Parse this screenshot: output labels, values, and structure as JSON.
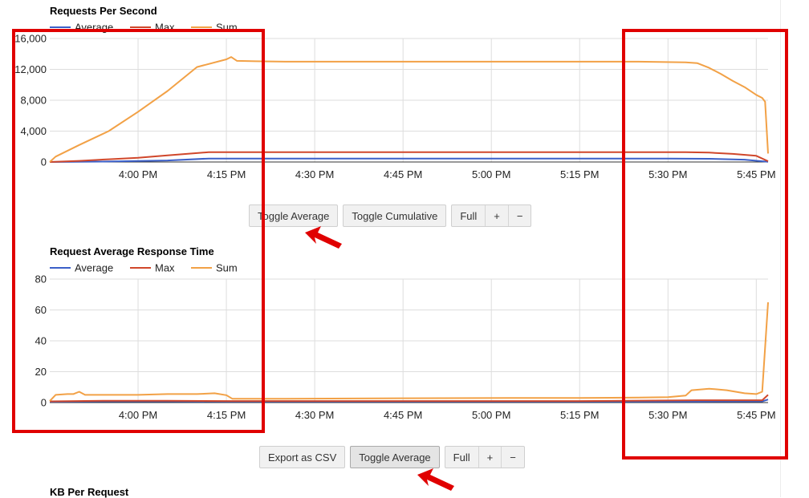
{
  "colors": {
    "average": "#3b5fc8",
    "max": "#d0472b",
    "sum": "#f2a146",
    "annotation": "#e00000",
    "grid": "#dddddd"
  },
  "legend": [
    "Average",
    "Max",
    "Sum"
  ],
  "chart_data": [
    {
      "type": "line",
      "title": "Requests Per Second",
      "x_ticks": [
        "4:00 PM",
        "4:15 PM",
        "4:30 PM",
        "4:45 PM",
        "5:00 PM",
        "5:15 PM",
        "5:30 PM",
        "5:45 PM"
      ],
      "x_tick_minutes": [
        15,
        30,
        45,
        60,
        75,
        90,
        105,
        120
      ],
      "xlim_minutes": [
        0,
        122
      ],
      "y_ticks": [
        "0",
        "4,000",
        "8,000",
        "12,000",
        "16,000"
      ],
      "ylim": [
        0,
        16000
      ],
      "legend_position": "top-left",
      "grid": true,
      "series": [
        {
          "name": "Average",
          "points": [
            [
              0,
              0
            ],
            [
              10,
              60
            ],
            [
              20,
              200
            ],
            [
              27,
              450
            ],
            [
              35,
              450
            ],
            [
              60,
              450
            ],
            [
              90,
              450
            ],
            [
              105,
              450
            ],
            [
              112,
              420
            ],
            [
              118,
              300
            ],
            [
              122,
              20
            ]
          ]
        },
        {
          "name": "Max",
          "points": [
            [
              0,
              0
            ],
            [
              5,
              150
            ],
            [
              10,
              350
            ],
            [
              15,
              550
            ],
            [
              20,
              850
            ],
            [
              25,
              1150
            ],
            [
              27,
              1280
            ],
            [
              40,
              1280
            ],
            [
              60,
              1270
            ],
            [
              90,
              1270
            ],
            [
              108,
              1270
            ],
            [
              112,
              1220
            ],
            [
              116,
              1050
            ],
            [
              120,
              800
            ],
            [
              122,
              100
            ]
          ]
        },
        {
          "name": "Sum",
          "points": [
            [
              0,
              0
            ],
            [
              1,
              700
            ],
            [
              5,
              2200
            ],
            [
              10,
              4000
            ],
            [
              15,
              6500
            ],
            [
              20,
              9200
            ],
            [
              25,
              12300
            ],
            [
              30,
              13300
            ],
            [
              30.8,
              13600
            ],
            [
              31.8,
              13100
            ],
            [
              35,
              13050
            ],
            [
              40,
              13000
            ],
            [
              45,
              13000
            ],
            [
              50,
              13000
            ],
            [
              60,
              13000
            ],
            [
              70,
              13000
            ],
            [
              80,
              13000
            ],
            [
              90,
              13000
            ],
            [
              100,
              13000
            ],
            [
              108,
              12900
            ],
            [
              110,
              12800
            ],
            [
              112,
              12200
            ],
            [
              114,
              11400
            ],
            [
              116,
              10500
            ],
            [
              118,
              9700
            ],
            [
              120,
              8700
            ],
            [
              121,
              8300
            ],
            [
              121.5,
              7800
            ],
            [
              122,
              1100
            ]
          ]
        }
      ]
    },
    {
      "type": "line",
      "title": "Request Average Response Time",
      "x_ticks": [
        "4:00 PM",
        "4:15 PM",
        "4:30 PM",
        "4:45 PM",
        "5:00 PM",
        "5:15 PM",
        "5:30 PM",
        "5:45 PM"
      ],
      "x_tick_minutes": [
        15,
        30,
        45,
        60,
        75,
        90,
        105,
        120
      ],
      "xlim_minutes": [
        0,
        122
      ],
      "y_ticks": [
        "0",
        "20",
        "40",
        "60",
        "80"
      ],
      "ylim": [
        0,
        80
      ],
      "legend_position": "top-left",
      "grid": true,
      "series": [
        {
          "name": "Average",
          "points": [
            [
              0,
              0.5
            ],
            [
              10,
              0.8
            ],
            [
              20,
              0.8
            ],
            [
              30,
              0.6
            ],
            [
              60,
              0.6
            ],
            [
              90,
              0.6
            ],
            [
              110,
              0.7
            ],
            [
              121,
              0.8
            ],
            [
              122,
              2
            ]
          ]
        },
        {
          "name": "Max",
          "points": [
            [
              0,
              0.8
            ],
            [
              10,
              1.2
            ],
            [
              20,
              1.2
            ],
            [
              30,
              1
            ],
            [
              60,
              1
            ],
            [
              90,
              1
            ],
            [
              110,
              1.5
            ],
            [
              121,
              1.5
            ],
            [
              122,
              5
            ]
          ]
        },
        {
          "name": "Sum",
          "points": [
            [
              0,
              1
            ],
            [
              1,
              5
            ],
            [
              3,
              5.5
            ],
            [
              4,
              5.5
            ],
            [
              5,
              7
            ],
            [
              6,
              5
            ],
            [
              10,
              5
            ],
            [
              15,
              5
            ],
            [
              20,
              5.5
            ],
            [
              25,
              5.5
            ],
            [
              28,
              6
            ],
            [
              30,
              4.8
            ],
            [
              31,
              2.5
            ],
            [
              40,
              2.5
            ],
            [
              60,
              2.8
            ],
            [
              80,
              3
            ],
            [
              90,
              3
            ],
            [
              100,
              3.2
            ],
            [
              105,
              3.5
            ],
            [
              108,
              4.5
            ],
            [
              109,
              8
            ],
            [
              112,
              9
            ],
            [
              115,
              8
            ],
            [
              118,
              6
            ],
            [
              120,
              5.5
            ],
            [
              121,
              7
            ],
            [
              122,
              65
            ]
          ]
        }
      ]
    }
  ],
  "buttons_top": {
    "toggle_average": "Toggle Average",
    "toggle_cumulative": "Toggle Cumulative",
    "full": "Full",
    "plus": "+",
    "minus": "−"
  },
  "buttons_mid": {
    "export_csv": "Export as CSV",
    "toggle_average": "Toggle Average",
    "full": "Full",
    "plus": "+",
    "minus": "−"
  },
  "next_chart_title": "KB Per Request"
}
